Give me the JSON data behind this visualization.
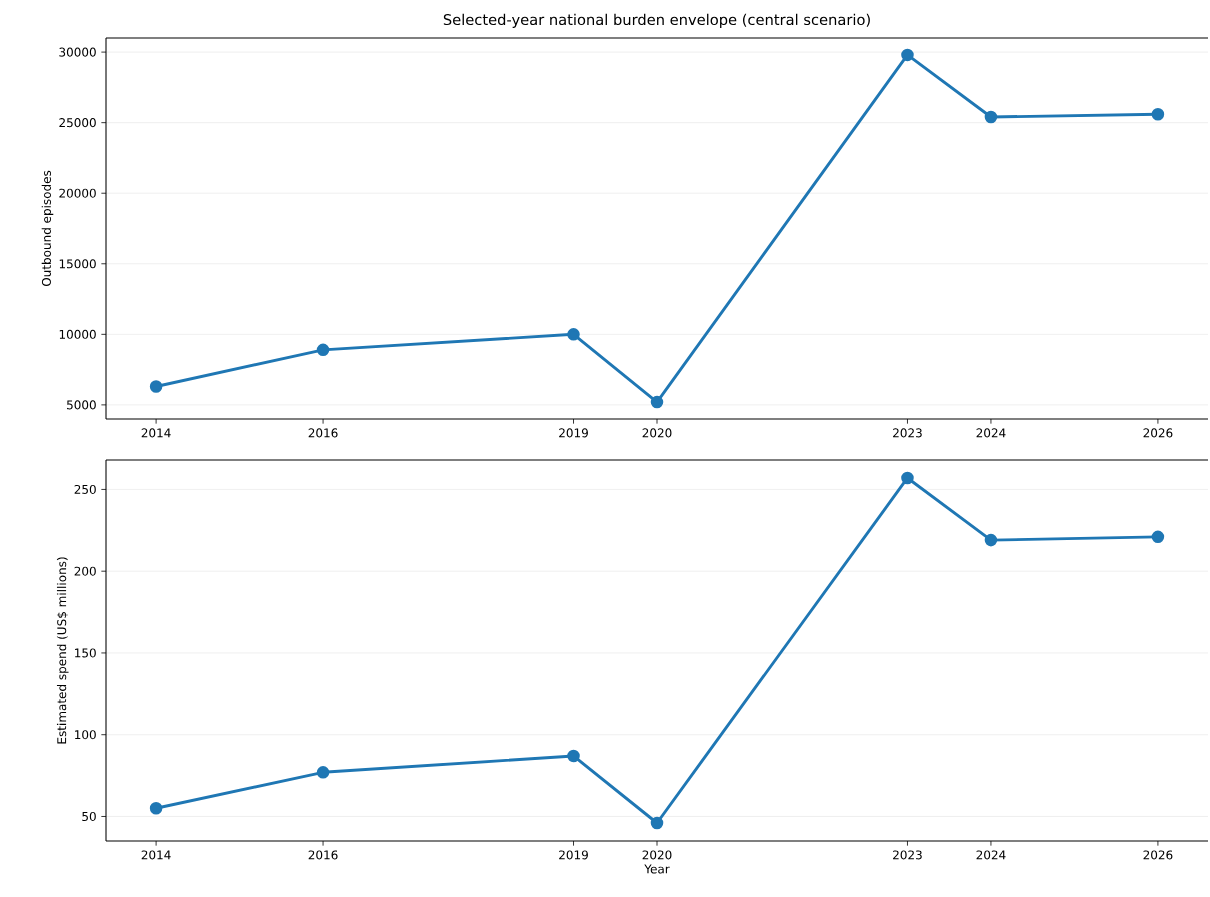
{
  "chart_data": [
    {
      "type": "line",
      "title": "Selected-year national burden envelope (central scenario)",
      "ylabel": "Outbound episodes",
      "x": [
        2014,
        2016,
        2019,
        2020,
        2023,
        2024,
        2026
      ],
      "series": [
        {
          "color": "#1f77b4",
          "values": [
            6300,
            8900,
            10000,
            5200,
            29800,
            25400,
            25600
          ]
        }
      ],
      "xlim": [
        2013.4,
        2026.6
      ],
      "xticks": [
        2014,
        2016,
        2019,
        2020,
        2023,
        2024,
        2026
      ],
      "ylim": [
        4000,
        31000
      ],
      "yticks": [
        5000,
        10000,
        15000,
        20000,
        25000,
        30000
      ],
      "grid": "y",
      "marker": "circle",
      "line_style": "solid",
      "legend": false
    },
    {
      "type": "line",
      "ylabel": "Estimated spend (US$ millions)",
      "xlabel": "Year",
      "x": [
        2014,
        2016,
        2019,
        2020,
        2023,
        2024,
        2026
      ],
      "series": [
        {
          "color": "#1f77b4",
          "values": [
            55,
            77,
            87,
            46,
            257,
            219,
            221
          ]
        }
      ],
      "xlim": [
        2013.4,
        2026.6
      ],
      "xticks": [
        2014,
        2016,
        2019,
        2020,
        2023,
        2024,
        2026
      ],
      "ylim": [
        35,
        268
      ],
      "yticks": [
        50,
        100,
        150,
        200,
        250
      ],
      "grid": "y",
      "marker": "circle",
      "line_style": "solid",
      "legend": false
    }
  ]
}
